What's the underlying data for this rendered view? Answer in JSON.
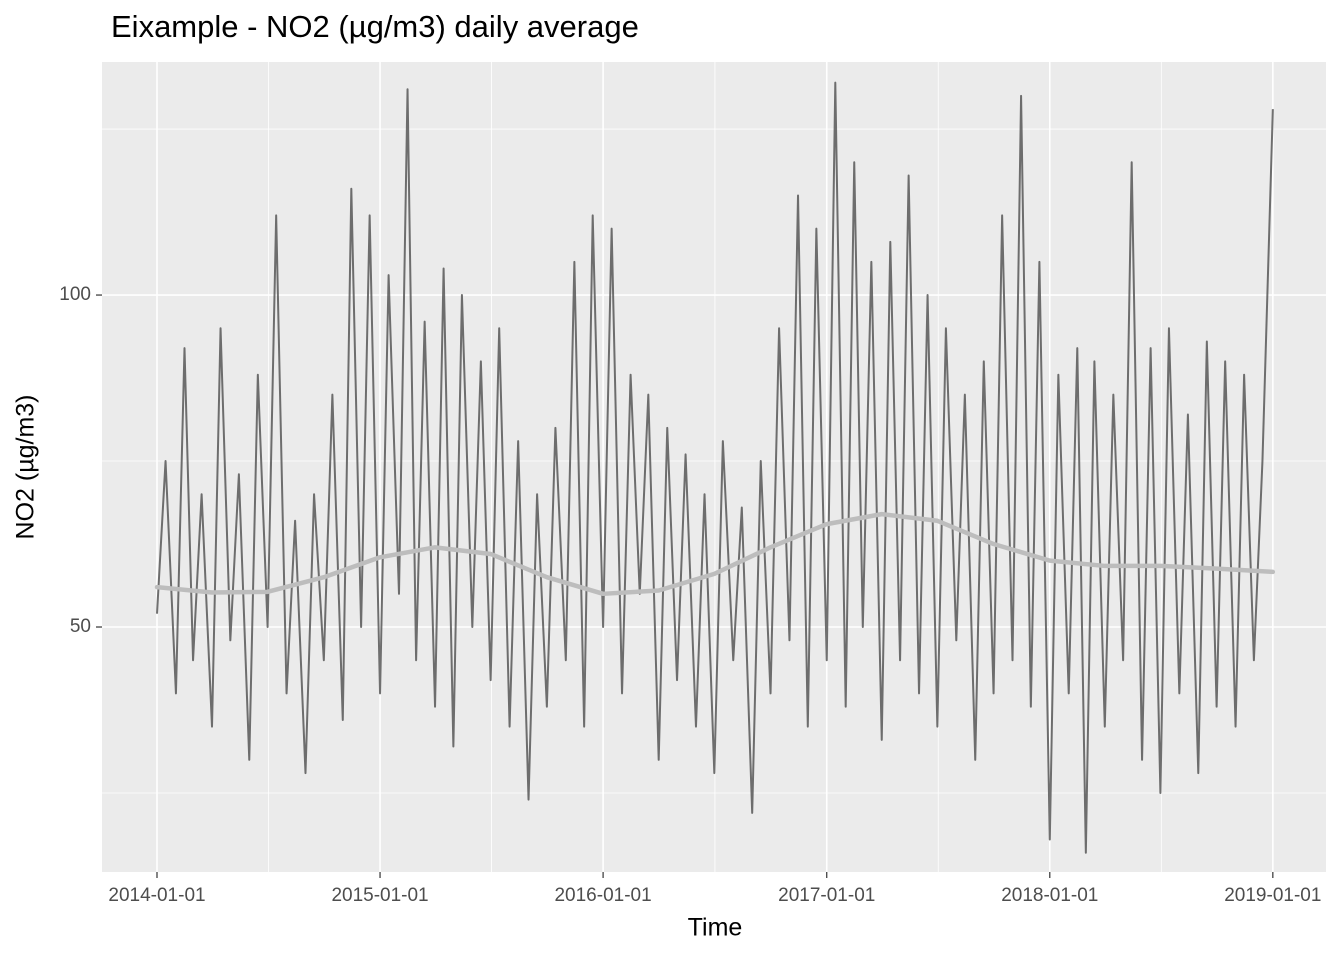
{
  "chart_data": {
    "type": "line",
    "title": "Eixample - NO2 (µg/m3) daily average",
    "x_label": "Time",
    "y_label": "NO2 (µg/m3)",
    "color": "#4d4d4d",
    "grid": true,
    "xlim": [
      "2013-10-03",
      "2019-03-29"
    ],
    "xticks": [
      "2014-01-01",
      "2015-01-01",
      "2016-01-01",
      "2017-01-01",
      "2018-01-01",
      "2019-01-01"
    ],
    "ylim": [
      13.1,
      135.1
    ],
    "yticks": [
      50,
      100
    ],
    "x": [
      "2014-01-01",
      "2014-01-15",
      "2014-02-01",
      "2014-02-15",
      "2014-03-01",
      "2014-03-15",
      "2014-04-01",
      "2014-04-15",
      "2014-05-01",
      "2014-05-15",
      "2014-06-01",
      "2014-06-15",
      "2014-07-01",
      "2014-07-15",
      "2014-08-01",
      "2014-08-15",
      "2014-09-01",
      "2014-09-15",
      "2014-10-01",
      "2014-10-15",
      "2014-11-01",
      "2014-11-15",
      "2014-12-01",
      "2014-12-15",
      "2015-01-01",
      "2015-01-15",
      "2015-02-01",
      "2015-02-15",
      "2015-03-01",
      "2015-03-15",
      "2015-04-01",
      "2015-04-15",
      "2015-05-01",
      "2015-05-15",
      "2015-06-01",
      "2015-06-15",
      "2015-07-01",
      "2015-07-15",
      "2015-08-01",
      "2015-08-15",
      "2015-09-01",
      "2015-09-15",
      "2015-10-01",
      "2015-10-15",
      "2015-11-01",
      "2015-11-15",
      "2015-12-01",
      "2015-12-15",
      "2016-01-01",
      "2016-01-15",
      "2016-02-01",
      "2016-02-15",
      "2016-03-01",
      "2016-03-15",
      "2016-04-01",
      "2016-04-15",
      "2016-05-01",
      "2016-05-15",
      "2016-06-01",
      "2016-06-15",
      "2016-07-01",
      "2016-07-15",
      "2016-08-01",
      "2016-08-15",
      "2016-09-01",
      "2016-09-15",
      "2016-10-01",
      "2016-10-15",
      "2016-11-01",
      "2016-11-15",
      "2016-12-01",
      "2016-12-15",
      "2017-01-01",
      "2017-01-15",
      "2017-02-01",
      "2017-02-15",
      "2017-03-01",
      "2017-03-15",
      "2017-04-01",
      "2017-04-15",
      "2017-05-01",
      "2017-05-15",
      "2017-06-01",
      "2017-06-15",
      "2017-07-01",
      "2017-07-15",
      "2017-08-01",
      "2017-08-15",
      "2017-09-01",
      "2017-09-15",
      "2017-10-01",
      "2017-10-15",
      "2017-11-01",
      "2017-11-15",
      "2017-12-01",
      "2017-12-15",
      "2018-01-01",
      "2018-01-15",
      "2018-02-01",
      "2018-02-15",
      "2018-03-01",
      "2018-03-15",
      "2018-04-01",
      "2018-04-15",
      "2018-05-01",
      "2018-05-15",
      "2018-06-01",
      "2018-06-15",
      "2018-07-01",
      "2018-07-15",
      "2018-08-01",
      "2018-08-15",
      "2018-09-01",
      "2018-09-15",
      "2018-10-01",
      "2018-10-15",
      "2018-11-01",
      "2018-11-15",
      "2018-12-01",
      "2018-12-15",
      "2019-01-01"
    ],
    "values": [
      52,
      75,
      40,
      92,
      45,
      70,
      35,
      95,
      48,
      73,
      30,
      88,
      50,
      112,
      40,
      66,
      28,
      70,
      45,
      85,
      36,
      116,
      50,
      112,
      40,
      103,
      55,
      131,
      45,
      96,
      38,
      104,
      32,
      100,
      50,
      90,
      42,
      95,
      35,
      78,
      24,
      70,
      38,
      80,
      45,
      105,
      35,
      112,
      50,
      110,
      40,
      88,
      55,
      85,
      30,
      80,
      42,
      76,
      35,
      70,
      28,
      78,
      45,
      68,
      22,
      75,
      40,
      95,
      48,
      115,
      35,
      110,
      45,
      132,
      38,
      120,
      50,
      105,
      33,
      108,
      45,
      118,
      40,
      100,
      35,
      95,
      48,
      85,
      30,
      90,
      40,
      112,
      45,
      130,
      38,
      105,
      18,
      88,
      40,
      92,
      16,
      90,
      35,
      85,
      45,
      120,
      30,
      92,
      25,
      95,
      40,
      82,
      28,
      93,
      38,
      90,
      35,
      88,
      45,
      75,
      128
    ],
    "smooth": {
      "color": "#bdbdbd",
      "x": [
        "2014-01-01",
        "2014-04-01",
        "2014-07-01",
        "2014-10-01",
        "2015-01-01",
        "2015-04-01",
        "2015-07-01",
        "2015-10-01",
        "2016-01-01",
        "2016-04-01",
        "2016-07-01",
        "2016-10-01",
        "2017-01-01",
        "2017-04-01",
        "2017-07-01",
        "2017-10-01",
        "2018-01-01",
        "2018-04-01",
        "2018-07-01",
        "2018-10-01",
        "2019-01-01"
      ],
      "values": [
        56,
        55.2,
        55.3,
        57.5,
        60.5,
        62,
        61,
        57.5,
        55,
        55.5,
        58,
        62,
        65.5,
        67,
        66,
        62.5,
        60,
        59.2,
        59.2,
        58.8,
        58.3
      ]
    }
  }
}
